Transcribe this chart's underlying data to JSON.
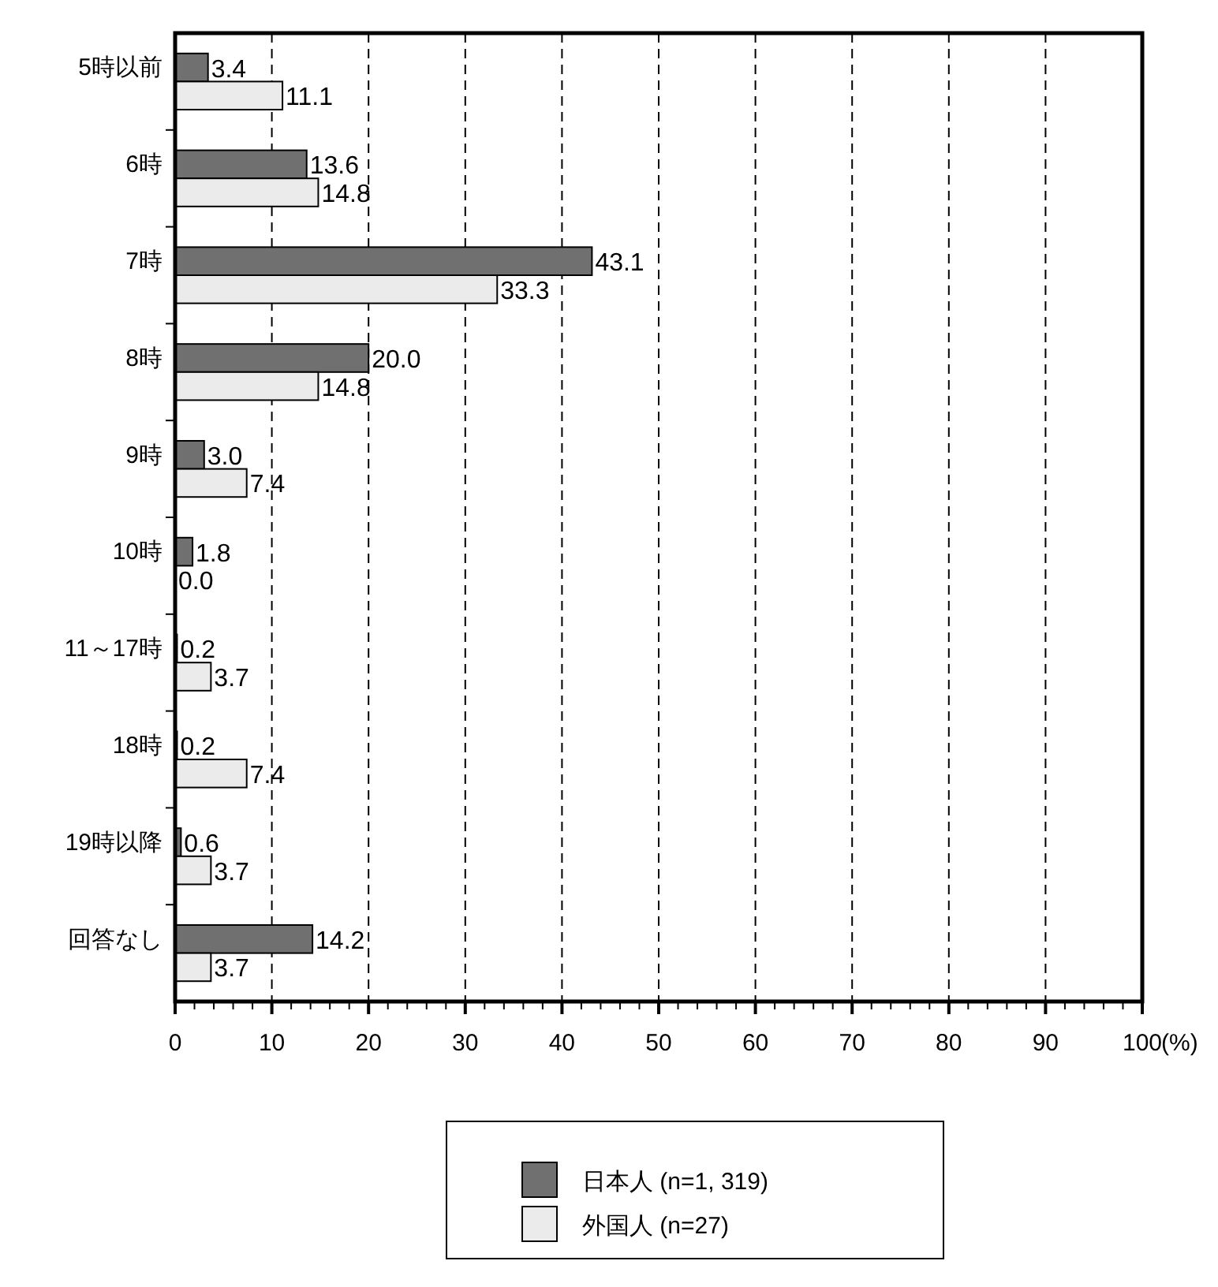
{
  "chart_data": {
    "type": "bar",
    "orientation": "horizontal",
    "xlabel": "(%)",
    "categories": [
      "5時以前",
      "6時",
      "7時",
      "8時",
      "9時",
      "10時",
      "11～17時",
      "18時",
      "19時以降",
      "回答なし"
    ],
    "series": [
      {
        "name": "日本人 (n=1, 319)",
        "color": "#707070",
        "values": [
          3.4,
          13.6,
          43.1,
          20.0,
          3.0,
          1.8,
          0.2,
          0.2,
          0.6,
          14.2
        ],
        "value_labels": [
          "3.4",
          "13.6",
          "43.1",
          "20.0",
          "3.0",
          "1.8",
          "0.2",
          "0.2",
          "0.6",
          "14.2"
        ]
      },
      {
        "name": "外国人 (n=27)",
        "color": "#ebebeb",
        "values": [
          11.1,
          14.8,
          33.3,
          14.8,
          7.4,
          0.0,
          3.7,
          7.4,
          3.7,
          3.7
        ],
        "value_labels": [
          "11.1",
          "14.8",
          "33.3",
          "14.8",
          "7.4",
          "0.0",
          "3.7",
          "7.4",
          "3.7",
          "3.7"
        ]
      }
    ],
    "xlim": [
      0,
      100
    ],
    "xticks": [
      0,
      {
        "value": 2,
        "label": null
      },
      {
        "value": 4,
        "label": null
      },
      {
        "value": 6,
        "label": null
      },
      {
        "value": 8,
        "label": null
      },
      10,
      {
        "value": 12,
        "label": null
      },
      {
        "value": 14,
        "label": null
      },
      {
        "value": 16,
        "label": null
      },
      {
        "value": 18,
        "label": null
      },
      20,
      {
        "value": 22,
        "label": null
      },
      {
        "value": 24,
        "label": null
      },
      {
        "value": 26,
        "label": null
      },
      {
        "value": 28,
        "label": null
      },
      30,
      {
        "value": 32,
        "label": null
      },
      {
        "value": 34,
        "label": null
      },
      {
        "value": 36,
        "label": null
      },
      {
        "value": 38,
        "label": null
      },
      40,
      {
        "value": 42,
        "label": null
      },
      {
        "value": 44,
        "label": null
      },
      {
        "value": 46,
        "label": null
      },
      {
        "value": 48,
        "label": null
      },
      50,
      {
        "value": 52,
        "label": null
      },
      {
        "value": 54,
        "label": null
      },
      {
        "value": 56,
        "label": null
      },
      {
        "value": 58,
        "label": null
      },
      60,
      {
        "value": 62,
        "label": null
      },
      {
        "value": 64,
        "label": null
      },
      {
        "value": 66,
        "label": null
      },
      {
        "value": 68,
        "label": null
      },
      70,
      {
        "value": 72,
        "label": null
      },
      {
        "value": 74,
        "label": null
      },
      {
        "value": 76,
        "label": null
      },
      {
        "value": 78,
        "label": null
      },
      80,
      {
        "value": 82,
        "label": null
      },
      {
        "value": 84,
        "label": null
      },
      {
        "value": 86,
        "label": null
      },
      {
        "value": 88,
        "label": null
      },
      90,
      {
        "value": 92,
        "label": null
      },
      {
        "value": 94,
        "label": null
      },
      {
        "value": 96,
        "label": null
      },
      {
        "value": 98,
        "label": null
      },
      100
    ],
    "grid": "x",
    "legend": "bottom"
  }
}
